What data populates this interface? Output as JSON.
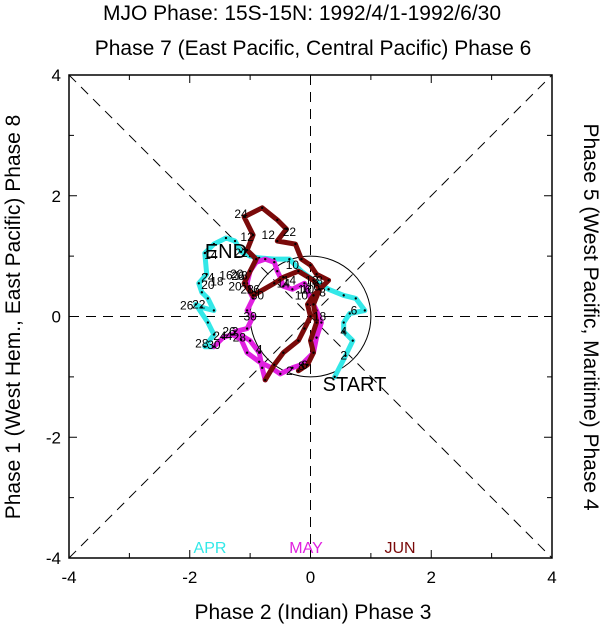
{
  "chart_data": {
    "type": "line",
    "title": "MJO Phase: 15S-15N: 1992/4/1-1992/6/30",
    "top_label": "Phase 7 (East Pacific, Central Pacific) Phase 6",
    "bottom_label": "Phase 2 (Indian) Phase 3",
    "left_label": "Phase 1 (West Hem., East Pacific) Phase 8",
    "right_label": "Phase 5 (West Pacific, Maritime) Phase 4",
    "xlim": [
      -4,
      4
    ],
    "ylim": [
      -4,
      4
    ],
    "x_ticks": [
      "-4",
      "-2",
      "0",
      "2",
      "4"
    ],
    "y_ticks": [
      "4",
      "2",
      "0",
      "-2",
      "-4"
    ],
    "start_label": "START",
    "end_label": "END",
    "legend": [
      {
        "label": "APR",
        "color": "#33e8e8"
      },
      {
        "label": "MAY",
        "color": "#e020e0"
      },
      {
        "label": "JUN",
        "color": "#7a0a0a"
      }
    ],
    "series": [
      {
        "name": "APR",
        "color": "#33e8e8",
        "points": [
          [
            0.4,
            -1.0
          ],
          [
            0.58,
            -0.65
          ],
          [
            0.7,
            -0.4
          ],
          [
            0.55,
            -0.25
          ],
          [
            0.55,
            -0.1
          ],
          [
            0.65,
            0.05
          ],
          [
            0.9,
            0.1
          ],
          [
            0.75,
            0.3
          ],
          [
            0.55,
            0.35
          ],
          [
            0.3,
            0.45
          ],
          [
            0.05,
            0.6
          ],
          [
            -0.15,
            0.75
          ],
          [
            -0.35,
            0.95
          ],
          [
            -0.6,
            0.95
          ],
          [
            -0.85,
            0.97
          ],
          [
            -1.0,
            1.0
          ],
          [
            -1.15,
            1.07
          ],
          [
            -1.25,
            1.25
          ],
          [
            -1.4,
            1.3
          ],
          [
            -1.6,
            1.2
          ],
          [
            -1.75,
            1.05
          ],
          [
            -1.72,
            0.7
          ],
          [
            -1.85,
            0.55
          ],
          [
            -1.8,
            0.4
          ],
          [
            -1.7,
            0.3
          ],
          [
            -1.6,
            0.1
          ],
          [
            -1.8,
            0.15
          ],
          [
            -1.9,
            0.2
          ],
          [
            -1.7,
            -0.1
          ],
          [
            -1.6,
            -0.3
          ],
          [
            -1.75,
            -0.5
          ],
          [
            -1.6,
            -0.5
          ]
        ],
        "labels": [
          {
            "text": "2",
            "x": 0.55,
            "y": -0.65
          },
          {
            "text": "4",
            "x": 0.55,
            "y": -0.25
          },
          {
            "text": "6",
            "x": 0.72,
            "y": 0.1
          },
          {
            "text": "8",
            "x": 0.15,
            "y": 0.6
          },
          {
            "text": "10",
            "x": -0.3,
            "y": 0.85
          },
          {
            "text": "12",
            "x": -1.05,
            "y": 1.32
          },
          {
            "text": "14",
            "x": -1.65,
            "y": 1.02
          },
          {
            "text": "16",
            "x": -1.4,
            "y": 0.68
          },
          {
            "text": "18",
            "x": -1.55,
            "y": 0.58
          },
          {
            "text": "20",
            "x": -1.7,
            "y": 0.52
          },
          {
            "text": "22",
            "x": -1.85,
            "y": 0.2
          },
          {
            "text": "24",
            "x": -1.7,
            "y": 0.65
          },
          {
            "text": "26",
            "x": -2.05,
            "y": 0.18
          },
          {
            "text": "28",
            "x": -1.8,
            "y": -0.45
          },
          {
            "text": "30",
            "x": -1.6,
            "y": -0.47
          }
        ]
      },
      {
        "name": "MAY",
        "color": "#e020e0",
        "points": [
          [
            -1.6,
            -0.5
          ],
          [
            -1.45,
            -0.35
          ],
          [
            -1.3,
            -0.3
          ],
          [
            -1.15,
            -0.38
          ],
          [
            -1.05,
            -0.6
          ],
          [
            -0.85,
            -0.75
          ],
          [
            -0.65,
            -0.85
          ],
          [
            -0.5,
            -0.95
          ],
          [
            -0.3,
            -0.85
          ],
          [
            -0.15,
            -0.8
          ],
          [
            0.05,
            -0.6
          ],
          [
            0.1,
            -0.35
          ],
          [
            0.18,
            -0.1
          ],
          [
            0.1,
            0.1
          ],
          [
            0.0,
            0.3
          ],
          [
            -0.1,
            0.55
          ],
          [
            -0.3,
            0.45
          ],
          [
            -0.45,
            0.5
          ],
          [
            -0.5,
            0.65
          ],
          [
            -0.55,
            0.75
          ],
          [
            -0.6,
            0.9
          ],
          [
            -0.75,
            0.95
          ],
          [
            -0.9,
            0.9
          ],
          [
            -1.0,
            0.75
          ],
          [
            -1.05,
            0.55
          ],
          [
            -1.0,
            0.4
          ],
          [
            -0.95,
            0.3
          ],
          [
            -1.05,
            0.1
          ],
          [
            -0.95,
            0.0
          ],
          [
            -1.05,
            -0.2
          ],
          [
            -1.25,
            -0.25
          ],
          [
            -1.0,
            -0.4
          ],
          [
            -0.85,
            -0.6
          ],
          [
            -0.8,
            -0.85
          ],
          [
            -0.75,
            -1.05
          ]
        ],
        "labels": [
          {
            "text": "2",
            "x": -1.25,
            "y": -0.25
          },
          {
            "text": "4",
            "x": -1.35,
            "y": -0.32
          },
          {
            "text": "6",
            "x": -0.1,
            "y": -0.8
          },
          {
            "text": "8",
            "x": -0.15,
            "y": -0.82
          },
          {
            "text": "10",
            "x": -0.15,
            "y": 0.35
          },
          {
            "text": "12",
            "x": 0.02,
            "y": 0.6
          },
          {
            "text": "14",
            "x": -0.45,
            "y": 0.55
          },
          {
            "text": "16",
            "x": -0.95,
            "y": 0.45
          },
          {
            "text": "18",
            "x": -1.15,
            "y": 0.68
          },
          {
            "text": "20",
            "x": -1.22,
            "y": 0.7
          },
          {
            "text": "22",
            "x": -1.15,
            "y": 1.05
          },
          {
            "text": "24",
            "x": -1.5,
            "y": -0.32
          },
          {
            "text": "26",
            "x": -1.35,
            "y": -0.25
          },
          {
            "text": "28",
            "x": -1.18,
            "y": -0.35
          },
          {
            "text": "30",
            "x": -1.0,
            "y": 0.0
          }
        ]
      },
      {
        "name": "JUN",
        "color": "#7a0a0a",
        "points": [
          [
            -0.75,
            -1.05
          ],
          [
            -0.6,
            -0.8
          ],
          [
            -0.45,
            -0.6
          ],
          [
            -0.2,
            -0.4
          ],
          [
            -0.1,
            -0.2
          ],
          [
            0.0,
            0.0
          ],
          [
            -0.05,
            0.2
          ],
          [
            0.05,
            0.35
          ],
          [
            0.15,
            0.45
          ],
          [
            0.3,
            0.6
          ],
          [
            0.1,
            0.7
          ],
          [
            0.0,
            0.85
          ],
          [
            -0.15,
            0.95
          ],
          [
            -0.25,
            1.2
          ],
          [
            -0.55,
            1.25
          ],
          [
            -0.4,
            1.45
          ],
          [
            -0.55,
            1.6
          ],
          [
            -0.8,
            1.8
          ],
          [
            -1.1,
            1.65
          ],
          [
            -0.95,
            1.35
          ],
          [
            -1.05,
            1.1
          ],
          [
            -0.9,
            0.95
          ],
          [
            -1.0,
            0.75
          ],
          [
            -1.1,
            0.55
          ],
          [
            -0.95,
            0.35
          ],
          [
            -0.6,
            0.55
          ],
          [
            -0.45,
            0.65
          ],
          [
            -0.2,
            0.75
          ],
          [
            0.05,
            0.6
          ],
          [
            0.15,
            0.45
          ],
          [
            0.05,
            0.2
          ],
          [
            0.1,
            -0.1
          ],
          [
            0.0,
            -0.4
          ],
          [
            0.05,
            -0.6
          ],
          [
            -0.05,
            -0.8
          ],
          [
            -0.2,
            -0.9
          ]
        ],
        "labels": [
          {
            "text": "2",
            "x": -0.35,
            "y": -0.9
          },
          {
            "text": "4",
            "x": -0.85,
            "y": -0.55
          },
          {
            "text": "6",
            "x": 0.1,
            "y": 0.5
          },
          {
            "text": "8",
            "x": 0.2,
            "y": 0.4
          },
          {
            "text": "10",
            "x": -0.05,
            "y": 0.45
          },
          {
            "text": "12",
            "x": -0.7,
            "y": 1.35
          },
          {
            "text": "14",
            "x": -0.35,
            "y": 0.6
          },
          {
            "text": "16",
            "x": -0.1,
            "y": 0.45
          },
          {
            "text": "18",
            "x": 0.15,
            "y": 0.0
          },
          {
            "text": "20",
            "x": -1.25,
            "y": 0.5
          },
          {
            "text": "22",
            "x": -0.35,
            "y": 1.4
          },
          {
            "text": "24",
            "x": -1.15,
            "y": 1.7
          },
          {
            "text": "26",
            "x": -1.2,
            "y": 0.67
          },
          {
            "text": "28",
            "x": -1.05,
            "y": 0.45
          },
          {
            "text": "30",
            "x": -0.88,
            "y": 0.35
          }
        ]
      }
    ],
    "start_point": [
      0.4,
      -1.0
    ],
    "end_point": [
      -0.2,
      -0.9
    ]
  }
}
